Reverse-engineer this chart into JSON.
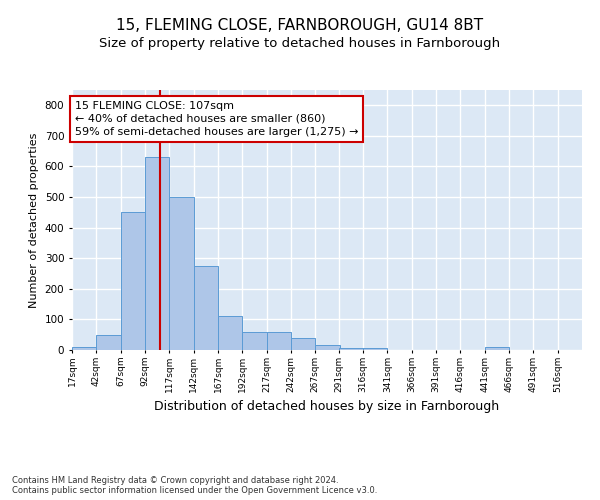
{
  "title1": "15, FLEMING CLOSE, FARNBOROUGH, GU14 8BT",
  "title2": "Size of property relative to detached houses in Farnborough",
  "xlabel": "Distribution of detached houses by size in Farnborough",
  "ylabel": "Number of detached properties",
  "footnote": "Contains HM Land Registry data © Crown copyright and database right 2024.\nContains public sector information licensed under the Open Government Licence v3.0.",
  "bin_starts": [
    17,
    42,
    67,
    92,
    117,
    142,
    167,
    192,
    217,
    242,
    267,
    291,
    316,
    341,
    366,
    391,
    416,
    441,
    466,
    491,
    516
  ],
  "bin_width": 25,
  "bar_heights": [
    10,
    50,
    450,
    630,
    500,
    275,
    110,
    60,
    60,
    40,
    15,
    5,
    5,
    0,
    0,
    0,
    0,
    10,
    0,
    0,
    0
  ],
  "bar_color": "#aec6e8",
  "bar_edge_color": "#5b9bd5",
  "vline_x": 107,
  "vline_color": "#cc0000",
  "annotation_text": "15 FLEMING CLOSE: 107sqm\n← 40% of detached houses are smaller (860)\n59% of semi-detached houses are larger (1,275) →",
  "annotation_box_color": "#ffffff",
  "annotation_box_edge_color": "#cc0000",
  "ylim": [
    0,
    850
  ],
  "yticks": [
    0,
    100,
    200,
    300,
    400,
    500,
    600,
    700,
    800
  ],
  "background_color": "#dce8f5",
  "grid_color": "#ffffff",
  "fig_background": "#ffffff",
  "title1_fontsize": 11,
  "title2_fontsize": 9.5,
  "xlabel_fontsize": 9,
  "ylabel_fontsize": 8,
  "footnote_fontsize": 6,
  "annotation_fontsize": 8
}
